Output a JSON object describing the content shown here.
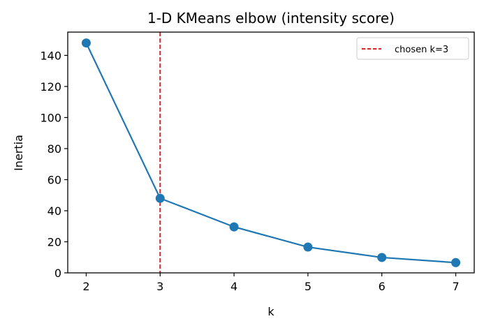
{
  "chart_data": {
    "type": "line",
    "title": "1-D KMeans elbow (intensity score)",
    "xlabel": "k",
    "ylabel": "Inertia",
    "x": [
      2,
      3,
      4,
      5,
      6,
      7
    ],
    "series": [
      {
        "name": "inertia",
        "values": [
          148,
          48,
          29.6,
          16.6,
          9.9,
          6.6
        ],
        "color": "#1f77b4",
        "marker": "circle"
      }
    ],
    "annotations": [
      {
        "type": "vline",
        "x": 3,
        "label": "chosen k=3",
        "color": "#d62728",
        "style": "dashed"
      }
    ],
    "xticks": [
      2,
      3,
      4,
      5,
      6,
      7
    ],
    "yticks": [
      0,
      20,
      40,
      60,
      80,
      100,
      120,
      140
    ],
    "xlim": [
      1.75,
      7.25
    ],
    "ylim": [
      0,
      155
    ],
    "grid": false,
    "legend": {
      "position": "upper right",
      "entries": [
        "chosen k=3"
      ]
    }
  }
}
